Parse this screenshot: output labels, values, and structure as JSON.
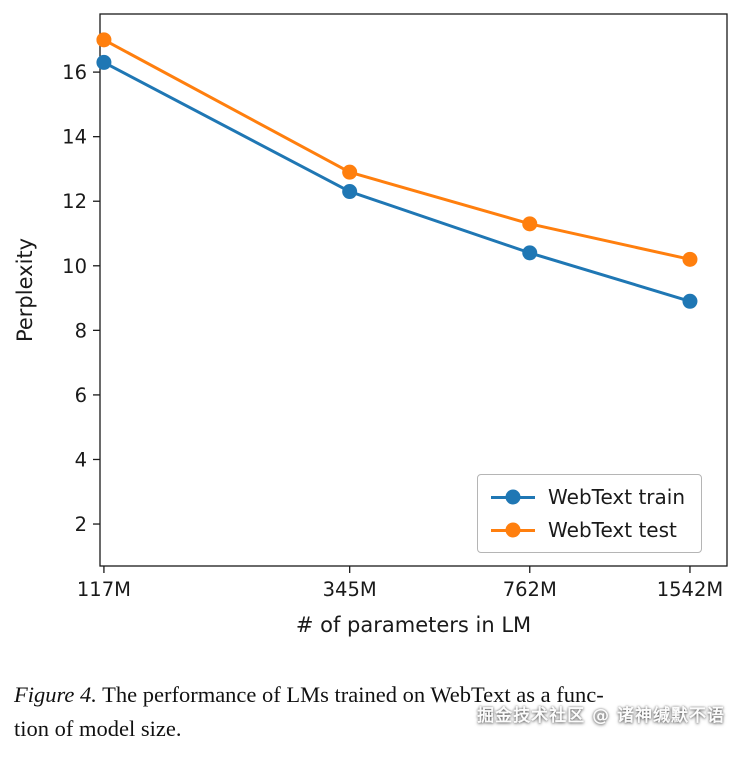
{
  "chart_data": {
    "type": "line",
    "title": "",
    "xlabel": "# of parameters in LM",
    "ylabel": "Perplexity",
    "x_scale": "log",
    "x_categories": [
      "117M",
      "345M",
      "762M",
      "1542M"
    ],
    "x_values_millions": [
      117,
      345,
      762,
      1542
    ],
    "xlim_millions": [
      115,
      1815
    ],
    "yticks": [
      2,
      4,
      6,
      8,
      10,
      12,
      14,
      16
    ],
    "ylim": [
      0.7,
      17.8
    ],
    "grid": false,
    "legend_position": "lower right",
    "series": [
      {
        "name": "WebText train",
        "color": "#1f77b4",
        "values": [
          16.3,
          12.3,
          10.4,
          8.9
        ]
      },
      {
        "name": "WebText test",
        "color": "#ff7f0e",
        "values": [
          17.0,
          12.9,
          11.3,
          10.2
        ]
      }
    ]
  },
  "caption": {
    "label": "Figure 4.",
    "line1": " The performance of LMs trained on WebText as a func-",
    "line2": "tion of model size."
  },
  "watermark": "掘金技术社区 @ 诸神缄默不语"
}
